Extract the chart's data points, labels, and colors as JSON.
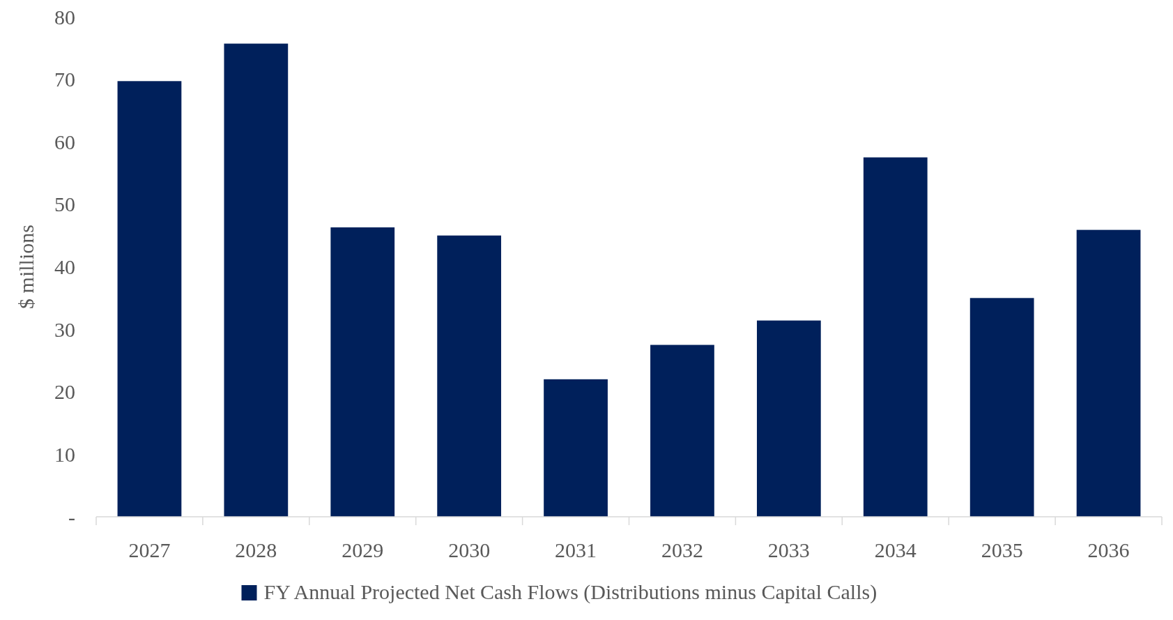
{
  "chart_data": {
    "type": "bar",
    "ylabel": "$ millions",
    "categories": [
      "2027",
      "2028",
      "2029",
      "2030",
      "2031",
      "2032",
      "2033",
      "2034",
      "2035",
      "2036"
    ],
    "series": [
      {
        "name": "FY Annual Projected Net Cash Flows (Distributions minus Capital Calls)",
        "color": "#00205b",
        "values": [
          69.7,
          75.7,
          46.3,
          45.0,
          22.0,
          27.5,
          31.4,
          57.5,
          35.0,
          45.9
        ]
      }
    ],
    "ylim": [
      0,
      80
    ],
    "yticks": [
      {
        "value": 0,
        "label": "-"
      },
      10,
      20,
      30,
      40,
      50,
      60,
      70,
      80
    ],
    "grid": false,
    "legend": "bottom"
  }
}
